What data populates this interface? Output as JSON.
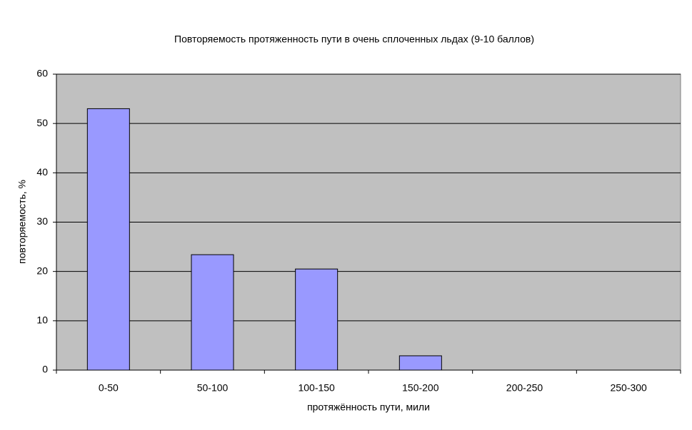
{
  "chart_data": {
    "type": "bar",
    "title": "Повторяемость протяженность пути в очень сплоченных льдах (9-10 баллов)",
    "x_label": "протяжённость пути, мили",
    "y_label": "повторяемость, %",
    "categories": [
      "0-50",
      "50-100",
      "100-150",
      "150-200",
      "200-250",
      "250-300"
    ],
    "values": [
      53,
      23.4,
      20.5,
      2.9,
      0,
      0
    ],
    "color": "#9999ff",
    "ylim": [
      0,
      60
    ],
    "yticks": [
      0,
      10,
      20,
      30,
      40,
      50,
      60
    ],
    "grid": true
  }
}
